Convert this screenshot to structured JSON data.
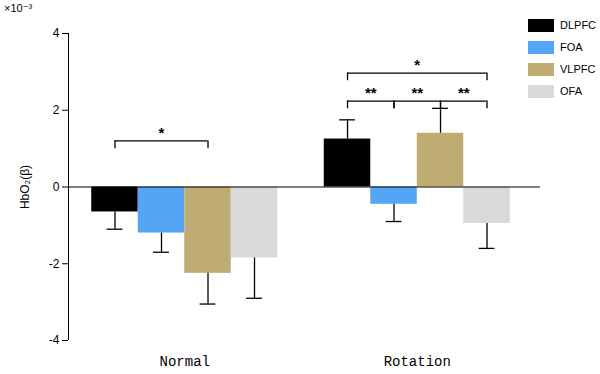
{
  "chart_data": {
    "type": "bar",
    "categories": [
      "Normal",
      "Rotation"
    ],
    "series": [
      {
        "name": "DLPFC",
        "color": "#000000",
        "values": [
          -0.65,
          1.25
        ],
        "errors": [
          0.45,
          0.5
        ]
      },
      {
        "name": "FOA",
        "color": "#55a5f5",
        "values": [
          -1.2,
          -0.45
        ],
        "errors": [
          0.5,
          0.45
        ]
      },
      {
        "name": "VLPFC",
        "color": "#bfac73",
        "values": [
          -2.25,
          1.4
        ],
        "errors": [
          0.8,
          0.65
        ]
      },
      {
        "name": "OFA",
        "color": "#d9d9d9",
        "values": [
          -1.85,
          -0.95
        ],
        "errors": [
          1.05,
          0.65
        ]
      }
    ],
    "ylabel": "HbO₂(β)",
    "y_multiplier": "×10⁻³",
    "ylim": [
      -4,
      4
    ],
    "yticks": [
      -4,
      -2,
      0,
      2,
      4
    ],
    "legend": "top-right",
    "annotations": [
      {
        "category": "Normal",
        "from": "DLPFC",
        "to": "VLPFC",
        "label": "*",
        "y": 1.2
      },
      {
        "category": "Rotation",
        "from": "DLPFC",
        "to": "FOA",
        "label": "**",
        "y": 2.24
      },
      {
        "category": "Rotation",
        "from": "FOA",
        "to": "VLPFC",
        "label": "**",
        "y": 2.24
      },
      {
        "category": "Rotation",
        "from": "VLPFC",
        "to": "OFA",
        "label": "**",
        "y": 2.24
      },
      {
        "category": "Rotation",
        "from": "DLPFC",
        "to": "OFA",
        "label": "*",
        "y": 2.97
      }
    ]
  }
}
